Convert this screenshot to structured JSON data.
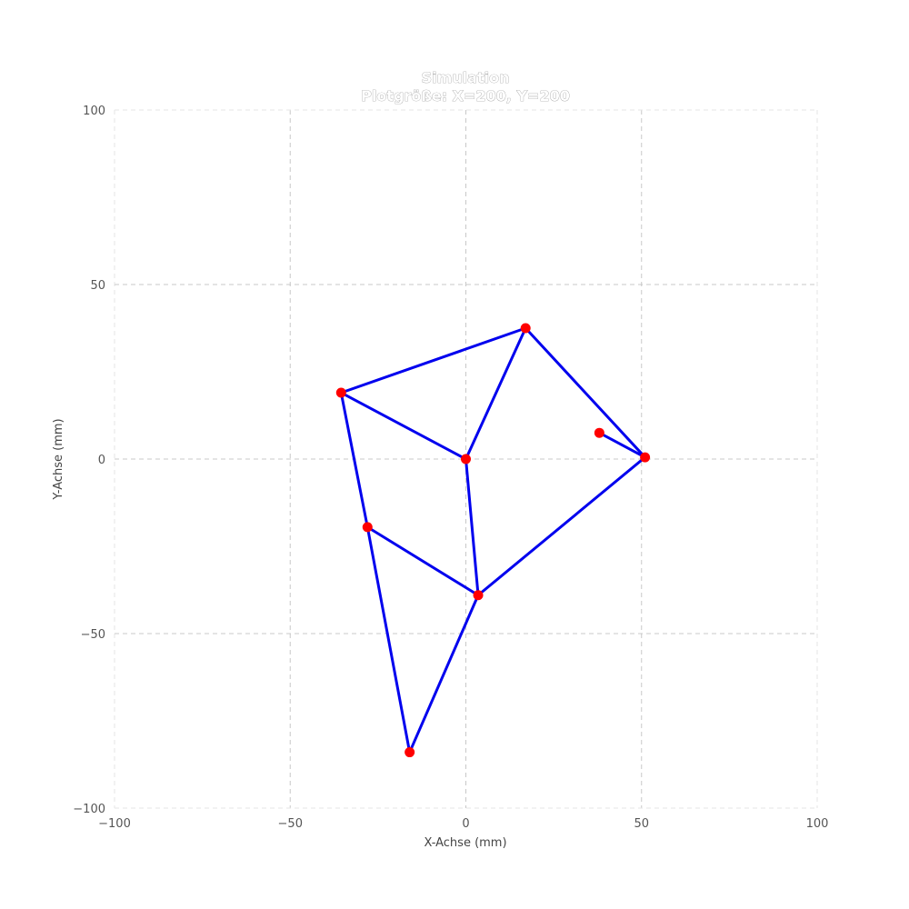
{
  "chart_data": {
    "type": "scatter",
    "title": "Simulation",
    "subtitle": "Plotgröße: X=200, Y=200",
    "xlabel": "X-Achse (mm)",
    "ylabel": "Y-Achse (mm)",
    "xlim": [
      -100,
      100
    ],
    "ylim": [
      -100,
      100
    ],
    "xticks": [
      -100,
      -50,
      0,
      50,
      100
    ],
    "yticks": [
      -100,
      -50,
      0,
      50,
      100
    ],
    "xtick_labels": [
      "−100",
      "−50",
      "0",
      "50",
      "100"
    ],
    "ytick_labels": [
      "−100",
      "−50",
      "0",
      "50",
      "100"
    ],
    "grid": true,
    "points": [
      {
        "x": 0,
        "y": 0
      },
      {
        "x": 17,
        "y": 37.5
      },
      {
        "x": -35.5,
        "y": 19
      },
      {
        "x": 51,
        "y": 0.5
      },
      {
        "x": 38,
        "y": 7.5
      },
      {
        "x": -28,
        "y": -19.5
      },
      {
        "x": 3.5,
        "y": -39
      },
      {
        "x": -16,
        "y": -84
      }
    ],
    "edges": [
      [
        2,
        1
      ],
      [
        2,
        0
      ],
      [
        0,
        1
      ],
      [
        1,
        3
      ],
      [
        4,
        3
      ],
      [
        3,
        6
      ],
      [
        0,
        6
      ],
      [
        2,
        5
      ],
      [
        5,
        6
      ],
      [
        5,
        7
      ],
      [
        6,
        7
      ]
    ],
    "colors": {
      "edge": "#0000ee",
      "point": "#ff0000"
    }
  }
}
